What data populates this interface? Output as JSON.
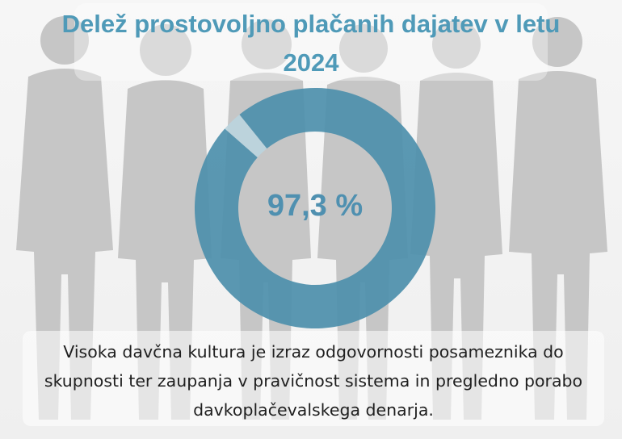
{
  "title": "Delež prostovoljno plačanih dajatev v letu 2024",
  "center_label": "97,3 %",
  "caption": "Visoka davčna kultura je izraz odgovornosti posameznika do skupnosti ter zaupanja v pravičnost sistema in pregledno porabo davkoplačevalskega denarja.",
  "background_icon": "people-silhouettes-icon",
  "colors": {
    "title": "#4f9ab8",
    "main_slice": "#4d8fab",
    "rest_slice": "#bcd4dd",
    "silhouette": "#c7c7c7",
    "caption_text": "#1f1f1f"
  },
  "chart_data": {
    "type": "pie",
    "title": "Delež prostovoljno plačanih dajatev v letu 2024",
    "center_label": "97,3 %",
    "slices": [
      {
        "value": 97.3,
        "color": "#4d8fab"
      },
      {
        "value": 2.7,
        "color": "#bcd4dd"
      }
    ]
  }
}
